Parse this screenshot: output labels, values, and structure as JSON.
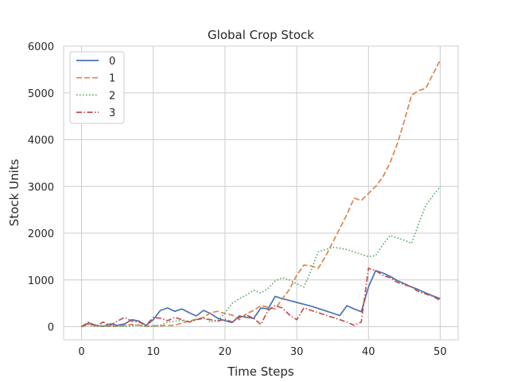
{
  "chart_data": {
    "type": "line",
    "title": "Global Crop Stock",
    "xlabel": "Time Steps",
    "ylabel": "Stock Units",
    "xlim": [
      -2.5,
      52.5
    ],
    "ylim": [
      -280,
      6000
    ],
    "xticks": [
      0,
      10,
      20,
      30,
      40,
      50
    ],
    "yticks": [
      0,
      1000,
      2000,
      3000,
      4000,
      5000,
      6000
    ],
    "grid": true,
    "legend_position": "top-left",
    "series": [
      {
        "name": "0",
        "color": "#4c72b0",
        "dash": "solid",
        "x": [
          0,
          1,
          2,
          3,
          4,
          5,
          6,
          7,
          8,
          9,
          10,
          11,
          12,
          13,
          14,
          15,
          16,
          17,
          18,
          19,
          20,
          21,
          22,
          23,
          24,
          25,
          26,
          27,
          28,
          29,
          30,
          31,
          32,
          33,
          34,
          35,
          36,
          37,
          38,
          39,
          40,
          41,
          42,
          43,
          44,
          45,
          46,
          47,
          48,
          49,
          50
        ],
        "values": [
          0,
          80,
          30,
          10,
          60,
          30,
          60,
          150,
          120,
          30,
          150,
          350,
          400,
          330,
          380,
          300,
          230,
          350,
          280,
          180,
          130,
          90,
          230,
          200,
          180,
          400,
          380,
          650,
          600,
          560,
          520,
          480,
          440,
          390,
          340,
          290,
          240,
          450,
          380,
          320,
          850,
          1200,
          1150,
          1080,
          990,
          920,
          850,
          790,
          720,
          660,
          600
        ]
      },
      {
        "name": "1",
        "color": "#dd8452",
        "dash": "dashed",
        "x": [
          0,
          1,
          2,
          3,
          4,
          5,
          6,
          7,
          8,
          9,
          10,
          11,
          12,
          13,
          14,
          15,
          16,
          17,
          18,
          19,
          20,
          21,
          22,
          23,
          24,
          25,
          26,
          27,
          28,
          29,
          30,
          31,
          32,
          33,
          34,
          35,
          36,
          37,
          38,
          39,
          40,
          41,
          42,
          43,
          44,
          45,
          46,
          47,
          48,
          49,
          50
        ],
        "values": [
          0,
          60,
          20,
          20,
          10,
          10,
          30,
          50,
          30,
          10,
          20,
          20,
          30,
          30,
          80,
          120,
          160,
          200,
          300,
          330,
          280,
          250,
          150,
          280,
          350,
          450,
          420,
          380,
          600,
          800,
          1100,
          1320,
          1300,
          1250,
          1500,
          1800,
          2100,
          2400,
          2750,
          2700,
          2850,
          3000,
          3200,
          3500,
          3900,
          4400,
          4950,
          5050,
          5100,
          5400,
          5700
        ]
      },
      {
        "name": "2",
        "color": "#55a868",
        "dash": "dotted",
        "x": [
          0,
          1,
          2,
          3,
          4,
          5,
          6,
          7,
          8,
          9,
          10,
          11,
          12,
          13,
          14,
          15,
          16,
          17,
          18,
          19,
          20,
          21,
          22,
          23,
          24,
          25,
          26,
          27,
          28,
          29,
          30,
          31,
          32,
          33,
          34,
          35,
          36,
          37,
          38,
          39,
          40,
          41,
          42,
          43,
          44,
          45,
          46,
          47,
          48,
          49,
          50
        ],
        "values": [
          0,
          40,
          10,
          10,
          10,
          10,
          10,
          20,
          40,
          10,
          10,
          30,
          100,
          120,
          130,
          110,
          150,
          200,
          100,
          130,
          300,
          500,
          600,
          680,
          780,
          720,
          820,
          980,
          1050,
          1000,
          920,
          850,
          1200,
          1600,
          1650,
          1700,
          1680,
          1650,
          1600,
          1550,
          1500,
          1520,
          1750,
          1950,
          1900,
          1850,
          1780,
          2200,
          2600,
          2800,
          3000
        ]
      },
      {
        "name": "3",
        "color": "#c44e52",
        "dash": "dashdot",
        "x": [
          0,
          1,
          2,
          3,
          4,
          5,
          6,
          7,
          8,
          9,
          10,
          11,
          12,
          13,
          14,
          15,
          16,
          17,
          18,
          19,
          20,
          21,
          22,
          23,
          24,
          25,
          26,
          27,
          28,
          29,
          30,
          31,
          32,
          33,
          34,
          35,
          36,
          37,
          38,
          39,
          40,
          41,
          42,
          43,
          44,
          45,
          46,
          47,
          48,
          49,
          50
        ],
        "values": [
          0,
          100,
          10,
          100,
          30,
          120,
          200,
          120,
          100,
          30,
          200,
          180,
          130,
          200,
          150,
          100,
          150,
          180,
          150,
          120,
          160,
          100,
          200,
          250,
          180,
          50,
          350,
          450,
          400,
          250,
          150,
          400,
          350,
          300,
          250,
          200,
          150,
          100,
          30,
          100,
          1250,
          1200,
          1100,
          1050,
          950,
          900,
          850,
          750,
          700,
          650,
          560
        ]
      }
    ]
  }
}
